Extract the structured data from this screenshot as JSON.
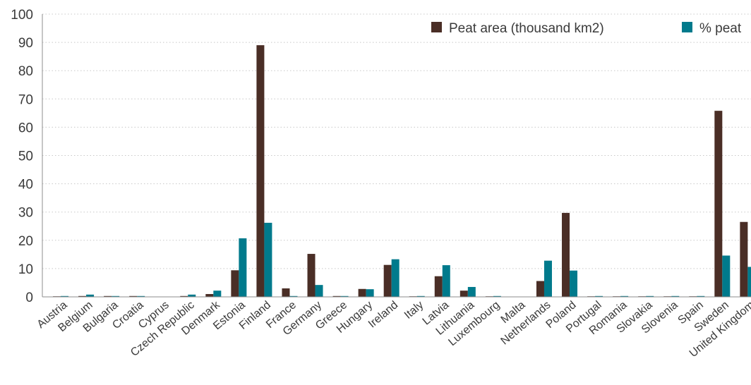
{
  "chart_data": {
    "type": "bar",
    "categories": [
      "Austria",
      "Belgium",
      "Bulgaria",
      "Croatia",
      "Cyprus",
      "Czech Republic",
      "Denmark",
      "Estonia",
      "Finland",
      "France",
      "Germany",
      "Greece",
      "Hungary",
      "Ireland",
      "Italy",
      "Latvia",
      "Lithuania",
      "Luxembourg",
      "Malta",
      "Netherlands",
      "Poland",
      "Portugal",
      "Romania",
      "Slovakia",
      "Slovenia",
      "Spain",
      "Sweden",
      "United Kingdom"
    ],
    "series": [
      {
        "name": "Peat area (thousand km2)",
        "color": "#4a2e26",
        "values": [
          0.2,
          0.3,
          0.3,
          0.3,
          0,
          0.3,
          1.0,
          9.4,
          89,
          3.0,
          15.2,
          0.3,
          2.8,
          11.3,
          0.2,
          7.3,
          2.2,
          0.2,
          0,
          5.6,
          29.7,
          0.2,
          0.2,
          0.2,
          0.2,
          0.2,
          65.8,
          26.5
        ]
      },
      {
        "name": "% peat",
        "color": "#007a8c",
        "values": [
          0.3,
          0.8,
          0.3,
          0.3,
          0,
          0.8,
          2.2,
          20.7,
          26.2,
          0.3,
          4.2,
          0.3,
          2.7,
          13.3,
          0.3,
          11.2,
          3.5,
          0.3,
          0,
          12.8,
          9.3,
          0.3,
          0.3,
          0.3,
          0.3,
          0.3,
          14.6,
          10.6
        ]
      }
    ],
    "ylim": [
      0,
      100
    ],
    "yticks": [
      0,
      10,
      20,
      30,
      40,
      50,
      60,
      70,
      80,
      90,
      100
    ],
    "grid": true,
    "legend": "top-right"
  }
}
